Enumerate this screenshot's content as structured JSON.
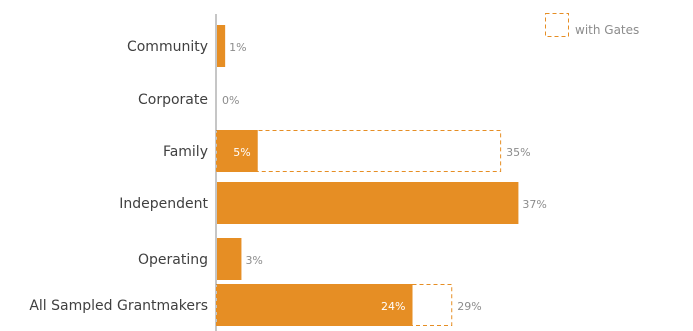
{
  "chart_data": {
    "type": "bar",
    "orientation": "horizontal",
    "categories": [
      "Community",
      "Corporate",
      "Family",
      "Independent",
      "Operating",
      "All Sampled Grantmakers"
    ],
    "series": [
      {
        "values": [
          1,
          0,
          5,
          37,
          3,
          24
        ]
      },
      {
        "name": "with Gates",
        "values": [
          null,
          null,
          35,
          null,
          null,
          29
        ]
      }
    ],
    "value_labels": [
      "1%",
      "0%",
      "5%",
      "37%",
      "3%",
      "24%"
    ],
    "gates_labels": [
      "",
      "",
      "35%",
      "",
      "",
      "29%"
    ],
    "legend": {
      "label": "with Gates",
      "position": "top-right"
    },
    "title": "",
    "xlabel": "",
    "ylabel": "",
    "xlim": [
      0,
      41
    ],
    "grid": false,
    "colors": {
      "bar": "#E68E24",
      "outline": "#E68E24",
      "label": "#8C8C8C",
      "inner_label": "#FFFFFF",
      "category_text": "#404040",
      "axis": "#8C8C8C"
    }
  }
}
